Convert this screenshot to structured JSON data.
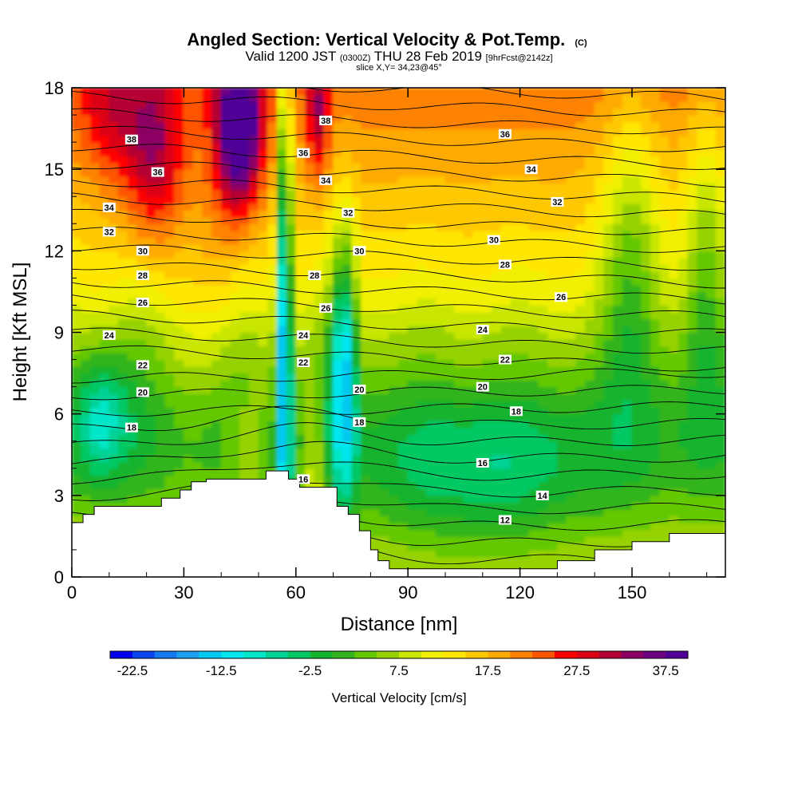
{
  "header": {
    "title": "Angled Section: Vertical Velocity & Pot.Temp.",
    "title_mark": "(C)",
    "valid_prefix": "Valid 1200 JST",
    "valid_utc": "(0300Z)",
    "valid_date": "THU 28 Feb 2019",
    "valid_fcst": "[9hrFcst@2142z]",
    "slice": "slice X,Y= 34,23@45°"
  },
  "chart_data": {
    "type": "heatmap",
    "xlabel": "Distance [nm]",
    "ylabel": "Height [Kft MSL]",
    "xlim": [
      0,
      175
    ],
    "ylim": [
      0,
      18
    ],
    "xticks": [
      0,
      30,
      60,
      90,
      120,
      150
    ],
    "yticks": [
      0,
      3,
      6,
      9,
      12,
      15,
      18
    ],
    "colorbar": {
      "label": "Vertical Velocity [cm/s]",
      "range": [
        -25,
        40
      ],
      "step": 2.5,
      "tick_values": [
        -22.5,
        -12.5,
        -2.5,
        7.5,
        17.5,
        27.5,
        37.5
      ],
      "tick_labels": [
        "-22.5",
        "-12.5",
        "-2.5",
        "7.5",
        "17.5",
        "27.5",
        "37.5"
      ],
      "colors": [
        "#0000ee",
        "#0a46f0",
        "#1478f0",
        "#1ea0f0",
        "#00c8f0",
        "#00e6f0",
        "#00e6c8",
        "#00d296",
        "#00c864",
        "#14b42d",
        "#32b41e",
        "#64c800",
        "#96d200",
        "#c8e600",
        "#f0f000",
        "#ffe600",
        "#ffc800",
        "#ffaa00",
        "#ff8200",
        "#ff5500",
        "#ff0000",
        "#dc0014",
        "#b40032",
        "#8c0064",
        "#6e0082",
        "#500096"
      ]
    },
    "terrain_profile": [
      [
        0,
        2.0
      ],
      [
        3,
        2.0
      ],
      [
        3,
        2.3
      ],
      [
        6,
        2.3
      ],
      [
        6,
        2.6
      ],
      [
        24,
        2.6
      ],
      [
        24,
        2.9
      ],
      [
        29,
        2.9
      ],
      [
        29,
        3.2
      ],
      [
        32,
        3.2
      ],
      [
        32,
        3.5
      ],
      [
        36,
        3.5
      ],
      [
        36,
        3.6
      ],
      [
        42,
        3.6
      ],
      [
        42,
        3.6
      ],
      [
        52,
        3.6
      ],
      [
        52,
        3.9
      ],
      [
        58,
        3.9
      ],
      [
        58,
        3.6
      ],
      [
        61,
        3.6
      ],
      [
        61,
        3.3
      ],
      [
        68,
        3.3
      ],
      [
        68,
        3.3
      ],
      [
        71,
        3.3
      ],
      [
        71,
        2.6
      ],
      [
        74,
        2.6
      ],
      [
        74,
        2.3
      ],
      [
        77,
        2.3
      ],
      [
        77,
        1.7
      ],
      [
        80,
        1.7
      ],
      [
        80,
        1.0
      ],
      [
        82,
        1.0
      ],
      [
        82,
        0.6
      ],
      [
        85,
        0.6
      ],
      [
        85,
        0.3
      ],
      [
        130,
        0.3
      ],
      [
        130,
        0.6
      ],
      [
        140,
        0.6
      ],
      [
        140,
        1.0
      ],
      [
        150,
        1.0
      ],
      [
        150,
        1.3
      ],
      [
        160,
        1.3
      ],
      [
        160,
        1.6
      ],
      [
        175,
        1.6
      ]
    ],
    "isentrope_labels": [
      {
        "label": "38",
        "x": 16,
        "y": 16.1
      },
      {
        "label": "36",
        "x": 23,
        "y": 14.9
      },
      {
        "label": "34",
        "x": 10,
        "y": 13.6
      },
      {
        "label": "32",
        "x": 10,
        "y": 12.7
      },
      {
        "label": "30",
        "x": 19,
        "y": 12.0
      },
      {
        "label": "28",
        "x": 19,
        "y": 11.1
      },
      {
        "label": "26",
        "x": 19,
        "y": 10.1
      },
      {
        "label": "24",
        "x": 10,
        "y": 8.9
      },
      {
        "label": "22",
        "x": 19,
        "y": 7.8
      },
      {
        "label": "20",
        "x": 19,
        "y": 6.8
      },
      {
        "label": "18",
        "x": 16,
        "y": 5.5
      },
      {
        "label": "38",
        "x": 68,
        "y": 16.8
      },
      {
        "label": "36",
        "x": 62,
        "y": 15.6
      },
      {
        "label": "34",
        "x": 68,
        "y": 14.6
      },
      {
        "label": "32",
        "x": 74,
        "y": 13.4
      },
      {
        "label": "30",
        "x": 77,
        "y": 12.0
      },
      {
        "label": "28",
        "x": 65,
        "y": 11.1
      },
      {
        "label": "26",
        "x": 68,
        "y": 9.9
      },
      {
        "label": "24",
        "x": 62,
        "y": 8.9
      },
      {
        "label": "22",
        "x": 62,
        "y": 7.9
      },
      {
        "label": "20",
        "x": 77,
        "y": 6.9
      },
      {
        "label": "18",
        "x": 77,
        "y": 5.7
      },
      {
        "label": "16",
        "x": 62,
        "y": 3.6
      },
      {
        "label": "36",
        "x": 116,
        "y": 16.3
      },
      {
        "label": "34",
        "x": 123,
        "y": 15.0
      },
      {
        "label": "32",
        "x": 130,
        "y": 13.8
      },
      {
        "label": "30",
        "x": 113,
        "y": 12.4
      },
      {
        "label": "28",
        "x": 116,
        "y": 11.5
      },
      {
        "label": "26",
        "x": 131,
        "y": 10.3
      },
      {
        "label": "24",
        "x": 110,
        "y": 9.1
      },
      {
        "label": "22",
        "x": 116,
        "y": 8.0
      },
      {
        "label": "20",
        "x": 110,
        "y": 7.0
      },
      {
        "label": "18",
        "x": 119,
        "y": 6.1
      },
      {
        "label": "16",
        "x": 110,
        "y": 4.2
      },
      {
        "label": "14",
        "x": 126,
        "y": 3.0
      },
      {
        "label": "12",
        "x": 116,
        "y": 2.1
      }
    ]
  }
}
